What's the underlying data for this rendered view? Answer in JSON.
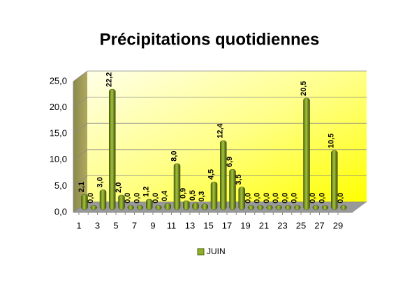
{
  "chart_data": {
    "type": "bar",
    "title": "Précipitations quotidiennes",
    "categories": [
      "1",
      null,
      "3",
      null,
      "5",
      null,
      "7",
      null,
      "9",
      null,
      "11",
      null,
      "13",
      null,
      "15",
      null,
      "17",
      null,
      "19",
      null,
      "21",
      null,
      "23",
      null,
      "25",
      null,
      "27",
      null,
      "29"
    ],
    "series": [
      {
        "name": "JUIN",
        "color": "#8fae2a",
        "values": [
          2.1,
          0,
          3.0,
          22.2,
          2.0,
          0,
          0,
          1.2,
          0,
          0.4,
          8.0,
          0.9,
          0.5,
          0.3,
          4.5,
          12.4,
          6.9,
          3.5,
          0,
          0,
          0,
          0,
          0,
          0,
          20.5,
          0,
          0,
          10.5,
          0
        ],
        "value_labels": [
          "2,1",
          "0,0",
          "3,0",
          "22,2",
          "2,0",
          "0,0",
          "0,0",
          "1,2",
          "0,0",
          "0,4",
          "8,0",
          "0,9",
          "0,5",
          "0,3",
          "4,5",
          "12,4",
          "6,9",
          "3,5",
          "0,0",
          "0,0",
          "0,0",
          "0,0",
          "0,0",
          "0,0",
          "20,5",
          "0,0",
          "0,0",
          "10,5",
          "0,0"
        ]
      }
    ],
    "ylim": [
      0,
      25
    ],
    "yticks": [
      {
        "value": 0,
        "label": "0,0"
      },
      {
        "value": 5,
        "label": "5,0"
      },
      {
        "value": 10,
        "label": "10,0"
      },
      {
        "value": 15,
        "label": "15,0"
      },
      {
        "value": 20,
        "label": "20,0"
      },
      {
        "value": 25,
        "label": "25,0"
      }
    ],
    "grid": true,
    "legend": "bottom"
  }
}
